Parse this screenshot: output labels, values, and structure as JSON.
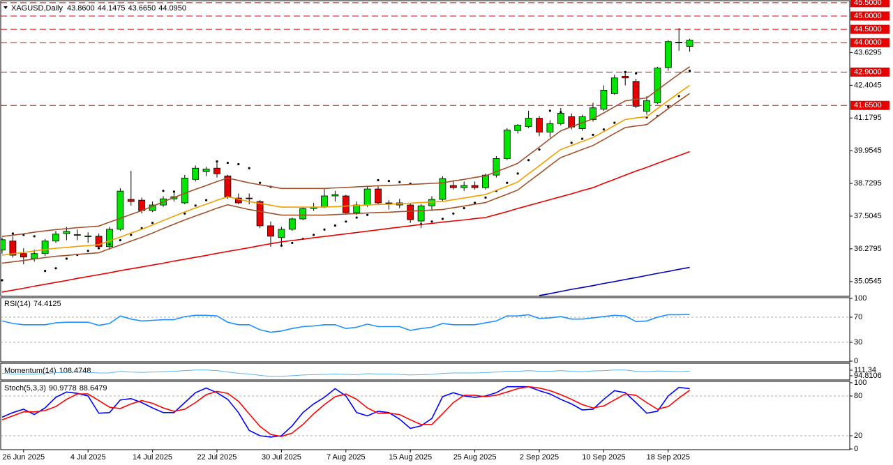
{
  "header": {
    "symbol": "XAGUSD,Daily",
    "ohlc": [
      "43.8600",
      "44.1475",
      "43.6650",
      "44.0950"
    ]
  },
  "chart_data": [
    {
      "type": "candlestick",
      "categories": [
        null,
        null,
        "26 Jun 2025",
        null,
        null,
        null,
        null,
        null,
        "4 Jul 2025",
        null,
        null,
        null,
        null,
        null,
        "14 Jul 2025",
        null,
        null,
        null,
        null,
        null,
        "22 Jul 2025",
        null,
        null,
        null,
        null,
        null,
        "30 Jul 2025",
        null,
        null,
        null,
        null,
        null,
        "7 Aug 2025",
        null,
        null,
        null,
        null,
        null,
        "15 Aug 2025",
        null,
        null,
        null,
        null,
        null,
        "25 Aug 2025",
        null,
        null,
        null,
        null,
        null,
        "2 Sep 2025",
        null,
        null,
        null,
        null,
        null,
        "10 Sep 2025",
        null,
        null,
        null,
        null,
        null,
        "18 Sep 2025",
        null,
        null
      ],
      "open": [
        36.23,
        36.57,
        36.1,
        35.91,
        36.1,
        36.57,
        36.85,
        36.8,
        36.75,
        36.75,
        36.36,
        37.01,
        38.13,
        38.1,
        37.71,
        37.92,
        38.15,
        38.0,
        38.88,
        39.17,
        39.3,
        39.01,
        38.18,
        38.18,
        38.05,
        37.14,
        36.7,
        37.01,
        37.4,
        37.79,
        37.84,
        38.26,
        38.26,
        37.63,
        37.92,
        38.52,
        38.0,
        37.92,
        37.92,
        37.32,
        37.89,
        38.13,
        38.65,
        38.57,
        38.65,
        38.57,
        39.04,
        39.66,
        40.71,
        40.86,
        41.17,
        40.65,
        40.97,
        41.23,
        40.78,
        41.12,
        41.51,
        42.09,
        42.74,
        42.55,
        41.43,
        41.75,
        43.07,
        44.01,
        43.86
      ],
      "high": [
        36.7,
        36.75,
        36.3,
        36.25,
        36.65,
        36.95,
        37.1,
        37.0,
        36.9,
        36.85,
        37.1,
        38.55,
        39.2,
        38.2,
        38.05,
        38.25,
        38.4,
        39.05,
        39.4,
        39.35,
        39.5,
        39.05,
        38.35,
        38.35,
        38.1,
        37.3,
        37.1,
        37.45,
        37.85,
        38.0,
        38.55,
        38.45,
        38.3,
        38.05,
        38.6,
        38.65,
        38.1,
        38.15,
        38.0,
        37.95,
        38.25,
        39.0,
        38.85,
        38.8,
        38.8,
        39.1,
        39.75,
        40.8,
        40.95,
        41.45,
        41.25,
        41.1,
        41.55,
        41.35,
        41.3,
        41.75,
        42.4,
        42.8,
        42.9,
        42.65,
        42.0,
        43.1,
        44.1,
        44.55,
        44.1475
      ],
      "low": [
        36.1,
        35.95,
        35.7,
        35.8,
        36.0,
        36.5,
        36.6,
        36.6,
        36.5,
        36.3,
        36.25,
        36.95,
        37.9,
        37.6,
        37.65,
        37.85,
        38.05,
        37.95,
        38.8,
        39.0,
        38.95,
        38.15,
        37.95,
        37.95,
        37.05,
        36.35,
        36.35,
        36.95,
        37.35,
        37.7,
        37.8,
        38.05,
        37.6,
        37.55,
        37.85,
        37.95,
        37.75,
        37.8,
        37.25,
        37.05,
        37.7,
        38.05,
        38.5,
        38.45,
        38.5,
        38.5,
        38.95,
        39.6,
        40.6,
        40.8,
        40.5,
        40.45,
        40.9,
        40.75,
        40.7,
        41.05,
        41.45,
        42.05,
        42.4,
        41.55,
        41.3,
        41.7,
        42.95,
        43.7,
        43.665
      ],
      "close": [
        36.62,
        36.04,
        35.97,
        36.1,
        36.57,
        36.83,
        36.93,
        36.81,
        36.76,
        36.36,
        37.01,
        38.44,
        38.05,
        37.71,
        37.92,
        38.15,
        38.23,
        38.93,
        39.3,
        39.27,
        39.09,
        38.23,
        38.0,
        38.17,
        37.14,
        36.75,
        37.01,
        37.4,
        37.79,
        37.84,
        38.26,
        38.31,
        37.63,
        37.92,
        38.52,
        38.0,
        37.99,
        38.0,
        37.37,
        37.89,
        38.13,
        38.91,
        38.57,
        38.65,
        38.57,
        39.04,
        39.66,
        40.73,
        40.91,
        41.17,
        40.65,
        40.97,
        41.36,
        40.84,
        41.23,
        41.56,
        42.22,
        42.68,
        42.68,
        41.62,
        41.83,
        43.05,
        44.04,
        44.02,
        44.095
      ],
      "up_color": "#00e600",
      "down_color": "#e60000",
      "ylim": [
        34.5,
        45.6
      ],
      "yticks": [
        35.0545,
        36.2795,
        37.5045,
        38.7295,
        39.9545,
        41.1795,
        42.4045,
        43.6295
      ],
      "levels": [
        {
          "value": 45.5,
          "label": "45.5000"
        },
        {
          "value": 45,
          "label": "45.0000"
        },
        {
          "value": 44.5,
          "label": "44.5000"
        },
        {
          "value": 44,
          "label": "44.0000"
        },
        {
          "value": 42.9,
          "label": "42.9000"
        },
        {
          "value": 41.65,
          "label": "41.6500"
        }
      ],
      "level_color": "#e60000",
      "overlays": [
        {
          "color": "#0000b4",
          "values": [
            null,
            null,
            null,
            null,
            null,
            null,
            null,
            null,
            null,
            null,
            null,
            null,
            null,
            null,
            null,
            null,
            null,
            null,
            null,
            null,
            null,
            null,
            null,
            null,
            null,
            null,
            null,
            null,
            null,
            null,
            null,
            null,
            null,
            null,
            null,
            null,
            null,
            null,
            null,
            null,
            null,
            null,
            null,
            null,
            null,
            null,
            null,
            null,
            null,
            null,
            34.53,
            34.6,
            34.68,
            34.76,
            34.83,
            34.9,
            34.98,
            35.05,
            35.13,
            35.2,
            35.28,
            35.36,
            35.43,
            35.51,
            35.58
          ]
        },
        {
          "color": "#e60000",
          "values": [
            34.66,
            34.73,
            34.8,
            34.88,
            34.95,
            35.02,
            35.09,
            35.17,
            35.24,
            35.31,
            35.38,
            35.46,
            35.53,
            35.6,
            35.67,
            35.74,
            35.82,
            35.89,
            35.96,
            36.03,
            36.11,
            36.18,
            36.25,
            36.32,
            36.4,
            36.47,
            36.54,
            36.59,
            36.64,
            36.69,
            36.74,
            36.79,
            36.84,
            36.89,
            36.94,
            36.99,
            37.04,
            37.09,
            37.14,
            37.19,
            37.23,
            37.28,
            37.32,
            37.36,
            37.41,
            37.45,
            37.56,
            37.67,
            37.79,
            37.9,
            38.01,
            38.12,
            38.23,
            38.34,
            38.46,
            38.57,
            38.73,
            38.88,
            39.04,
            39.19,
            39.33,
            39.48,
            39.63,
            39.77,
            39.92
          ]
        },
        {
          "color": "#f0a000",
          "values": [
            36.04,
            36.09,
            36.14,
            36.2,
            36.25,
            36.3,
            36.33,
            36.37,
            36.4,
            36.43,
            36.58,
            36.72,
            36.87,
            37.01,
            37.17,
            37.34,
            37.5,
            37.66,
            37.81,
            37.95,
            38.1,
            38.23,
            38.14,
            38.05,
            37.98,
            37.91,
            37.84,
            37.84,
            37.84,
            37.84,
            37.84,
            37.86,
            37.88,
            37.9,
            37.92,
            37.94,
            37.95,
            37.97,
            37.99,
            38.01,
            38.03,
            38.05,
            38.12,
            38.18,
            38.25,
            38.31,
            38.47,
            38.62,
            38.78,
            39.09,
            39.39,
            39.7,
            40.0,
            40.15,
            40.3,
            40.45,
            40.67,
            40.9,
            41.12,
            41.18,
            41.23,
            41.53,
            41.83,
            42.12,
            42.4
          ]
        },
        {
          "color": "#a0522d",
          "values": [
            36.74,
            36.79,
            36.84,
            36.9,
            36.95,
            37.0,
            37.03,
            37.07,
            37.1,
            37.13,
            37.28,
            37.42,
            37.57,
            37.71,
            37.87,
            38.04,
            38.2,
            38.36,
            38.51,
            38.65,
            38.8,
            38.93,
            38.84,
            38.75,
            38.68,
            38.61,
            38.54,
            38.54,
            38.54,
            38.54,
            38.54,
            38.56,
            38.58,
            38.6,
            38.62,
            38.64,
            38.65,
            38.67,
            38.69,
            38.71,
            38.73,
            38.75,
            38.82,
            38.88,
            38.95,
            39.01,
            39.17,
            39.32,
            39.48,
            39.79,
            40.09,
            40.4,
            40.7,
            40.85,
            41.0,
            41.15,
            41.37,
            41.6,
            41.82,
            41.88,
            41.93,
            42.23,
            42.53,
            42.82,
            43.1
          ]
        },
        {
          "color": "#a0522d",
          "values": [
            35.74,
            35.79,
            35.84,
            35.9,
            35.95,
            36.0,
            36.03,
            36.07,
            36.1,
            36.13,
            36.28,
            36.42,
            36.57,
            36.71,
            36.87,
            37.04,
            37.2,
            37.36,
            37.51,
            37.65,
            37.8,
            37.93,
            37.84,
            37.75,
            37.68,
            37.61,
            37.54,
            37.54,
            37.54,
            37.54,
            37.54,
            37.56,
            37.58,
            37.6,
            37.62,
            37.64,
            37.65,
            37.67,
            37.69,
            37.71,
            37.73,
            37.75,
            37.82,
            37.88,
            37.95,
            38.01,
            38.17,
            38.32,
            38.48,
            38.79,
            39.09,
            39.4,
            39.7,
            39.85,
            40.0,
            40.15,
            40.37,
            40.6,
            40.82,
            40.88,
            40.93,
            41.23,
            41.53,
            41.82,
            42.1
          ]
        }
      ],
      "sar": {
        "color": "#000000",
        "values": [
          35.1,
          36.85,
          36.8,
          36.75,
          35.45,
          35.55,
          35.91,
          36.05,
          36.2,
          36.3,
          36.45,
          36.6,
          36.8,
          37.05,
          37.25,
          38.45,
          38.42,
          37.6,
          37.9,
          38.1,
          39.55,
          39.5,
          39.45,
          39.3,
          38.75,
          38.6,
          36.4,
          36.5,
          36.65,
          36.8,
          37.0,
          37.15,
          37.3,
          37.45,
          37.55,
          38.85,
          38.82,
          38.78,
          38.72,
          37.2,
          37.3,
          37.4,
          37.6,
          37.8,
          38.0,
          38.2,
          38.45,
          38.75,
          39.1,
          39.6,
          40.0,
          41.45,
          41.4,
          40.25,
          40.4,
          40.55,
          40.75,
          41.0,
          42.9,
          42.85,
          41.2,
          41.25,
          41.6,
          42.0,
          42.95
        ]
      }
    },
    {
      "type": "line",
      "title": "RSI(14)",
      "value": 74.4125,
      "series": [
        {
          "color": "#1e90ff",
          "values": [
            64,
            60,
            58,
            58,
            58,
            61,
            62,
            62,
            62,
            57,
            60,
            72,
            67,
            64,
            65,
            66,
            66,
            71,
            73,
            73,
            72,
            62,
            58,
            58,
            50,
            46,
            48,
            52,
            55,
            56,
            58,
            58,
            52,
            54,
            59,
            55,
            55,
            55,
            49,
            52,
            54,
            60,
            58,
            58,
            58,
            61,
            64,
            72,
            72,
            74,
            68,
            69,
            71,
            67,
            67,
            69,
            71,
            73,
            72,
            63,
            64,
            70,
            74,
            74,
            74.4125
          ]
        }
      ],
      "ylim": [
        0,
        100
      ],
      "yticks": [
        0,
        30,
        70,
        100
      ],
      "levels": [
        30,
        70
      ]
    },
    {
      "type": "line",
      "title": "Momentum(14)",
      "value": 108.4748,
      "series": [
        {
          "color": "#5fb4e6",
          "values": [
            102,
            100,
            100,
            100,
            101,
            104,
            105,
            106,
            105,
            103,
            103,
            108,
            106,
            105,
            106,
            107,
            108,
            110,
            112,
            112,
            110,
            106,
            102,
            100,
            96,
            93,
            93,
            95,
            97,
            98,
            99,
            100,
            99,
            98,
            101,
            100,
            100,
            99,
            97,
            98,
            99,
            102,
            103,
            103,
            103,
            104,
            106,
            108,
            108,
            110,
            108,
            108,
            110,
            108,
            107,
            109,
            110,
            112,
            112,
            108,
            107,
            109,
            108,
            107,
            108.4748
          ]
        }
      ],
      "ylim": [
        82.4,
        129.9
      ],
      "yticks": [
        94.8106,
        111.34
      ]
    },
    {
      "type": "line",
      "title": "Stoch(5,3,3)",
      "value": [
        90.9778,
        88.6479
      ],
      "series": [
        {
          "color": "#0000ff",
          "values": [
            48,
            55,
            60,
            52,
            62,
            78,
            86,
            84,
            80,
            54,
            55,
            74,
            76,
            70,
            62,
            55,
            55,
            70,
            85,
            92,
            85,
            75,
            55,
            28,
            20,
            18,
            20,
            35,
            55,
            68,
            78,
            91,
            80,
            55,
            50,
            57,
            55,
            45,
            31,
            35,
            46,
            79,
            85,
            80,
            78,
            80,
            85,
            94,
            94,
            94,
            88,
            83,
            75,
            68,
            59,
            60,
            75,
            88,
            85,
            70,
            54,
            57,
            80,
            93,
            90.9778
          ]
        },
        {
          "color": "#ff0000",
          "values": [
            44,
            50,
            56,
            56,
            58,
            64,
            75,
            83,
            83,
            73,
            63,
            61,
            68,
            73,
            69,
            62,
            57,
            60,
            70,
            82,
            87,
            84,
            72,
            53,
            34,
            22,
            19,
            24,
            37,
            53,
            67,
            79,
            83,
            75,
            62,
            54,
            54,
            52,
            44,
            37,
            37,
            53,
            70,
            81,
            81,
            79,
            81,
            86,
            91,
            94,
            92,
            88,
            82,
            75,
            67,
            62,
            65,
            74,
            83,
            81,
            70,
            60,
            64,
            77,
            88.6479
          ]
        }
      ],
      "ylim": [
        0,
        100
      ],
      "yticks": [
        0,
        20,
        80,
        100
      ],
      "levels": [
        20,
        80
      ]
    }
  ]
}
